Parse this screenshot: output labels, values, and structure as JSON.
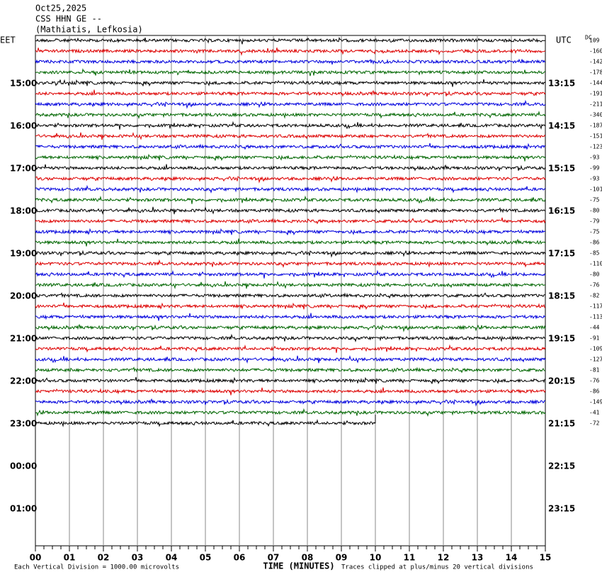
{
  "header": {
    "date": "Oct25,2025",
    "station": "CSS HHN GE --",
    "location": "(Mathiatis, Lefkosia)"
  },
  "left_zone": "EET",
  "right_zone": "UTC",
  "dc_label": "DC",
  "left_times": [
    "15:00",
    "16:00",
    "17:00",
    "18:00",
    "19:00",
    "20:00",
    "21:00",
    "22:00",
    "23:00",
    "00:00",
    "01:00"
  ],
  "right_times": [
    "13:15",
    "14:15",
    "15:15",
    "16:15",
    "17:15",
    "18:15",
    "19:15",
    "20:15",
    "21:15",
    "22:15",
    "23:15"
  ],
  "dc_offsets": [
    109,
    -160,
    -142,
    -178,
    -144,
    -191,
    -211,
    -340,
    -187,
    -151,
    -123,
    -93,
    -99,
    -93,
    -101,
    -75,
    -80,
    -79,
    -75,
    -86,
    -85,
    -110,
    -80,
    -76,
    -82,
    -117,
    -113,
    -44,
    -91,
    -109,
    -127,
    -81,
    -76,
    -86,
    -149,
    -41,
    -72
  ],
  "x_labels": [
    "00",
    "01",
    "02",
    "03",
    "04",
    "05",
    "06",
    "07",
    "08",
    "09",
    "10",
    "11",
    "12",
    "13",
    "14",
    "15"
  ],
  "footer": {
    "scale": "Each Vertical Division = 1000.00 microvolts",
    "x_title": "TIME (MINUTES)",
    "clip": "Traces clipped at plus/minus 20 vertical divisions"
  }
}
